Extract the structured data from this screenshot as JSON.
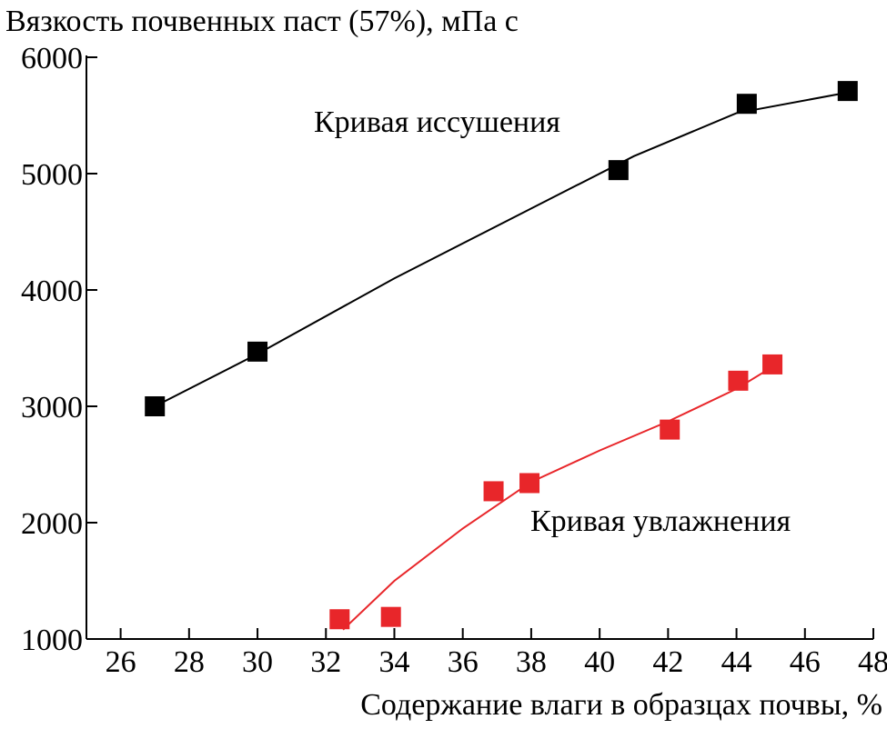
{
  "chart_data": {
    "type": "scatter",
    "title": "Вязкость почвенных паст (57%), мПа с",
    "x_label": "Содержание влаги в образцах почвы, %",
    "xlim": [
      25,
      48
    ],
    "xticks": [
      26,
      28,
      30,
      32,
      34,
      36,
      38,
      40,
      42,
      44,
      46,
      48
    ],
    "ylim": [
      1000,
      6000
    ],
    "yticks": [
      1000,
      2000,
      3000,
      4000,
      5000,
      6000
    ],
    "series": [
      {
        "name": "Кривая иссушения",
        "color": "#000000",
        "x": [
          27,
          30,
          40.55,
          44.3,
          47.25
        ],
        "values": [
          3000,
          3470,
          5030,
          5600,
          5710
        ],
        "curve_x": [
          27,
          30,
          34,
          38,
          41,
          44,
          47.3
        ],
        "curve_y": [
          3000,
          3450,
          4100,
          4700,
          5150,
          5520,
          5700
        ]
      },
      {
        "name": "Кривая увлажнения",
        "color": "#e8262a",
        "x": [
          32.4,
          33.9,
          36.9,
          37.95,
          42.05,
          44.05,
          45.05
        ],
        "values": [
          1170,
          1190,
          2270,
          2340,
          2800,
          3220,
          3360
        ],
        "curve_x": [
          32.5,
          34,
          36,
          38,
          40,
          42,
          44,
          45
        ],
        "curve_y": [
          1080,
          1500,
          1950,
          2350,
          2620,
          2870,
          3150,
          3330
        ]
      }
    ]
  }
}
